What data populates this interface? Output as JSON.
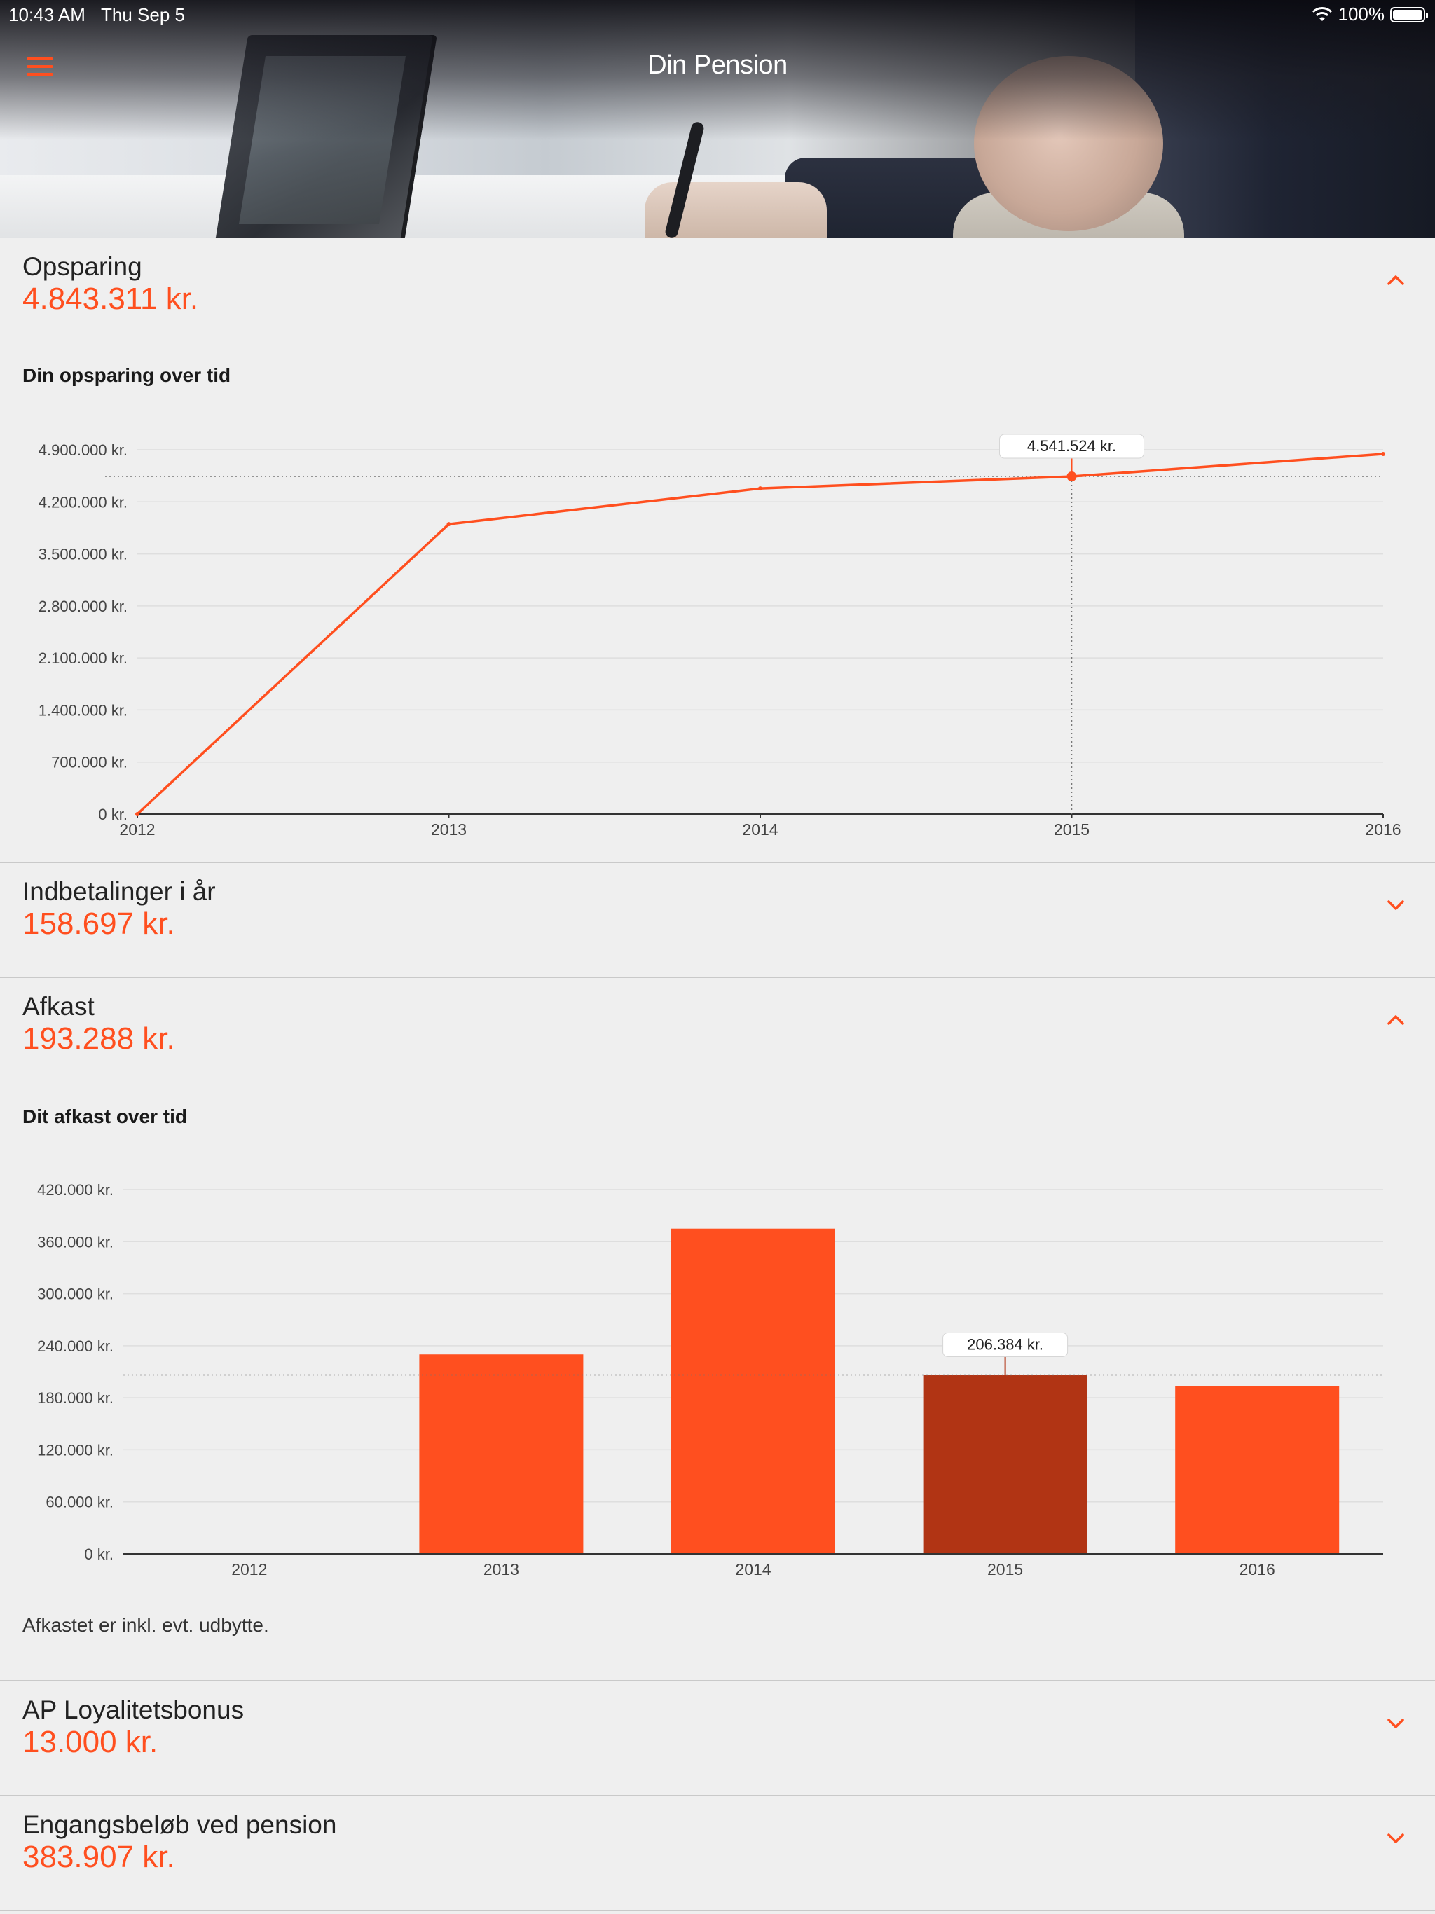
{
  "status_bar": {
    "time": "10:43 AM",
    "date": "Thu Sep 5",
    "battery": "100%"
  },
  "header": {
    "title": "Din Pension"
  },
  "colors": {
    "accent": "#ff4f1f",
    "highlight_bar": "#b13414",
    "background": "#efefef"
  },
  "sections": [
    {
      "title": "Opsparing",
      "amount": "4.843.311 kr.",
      "expanded": true,
      "chart_title": "Din opsparing over tid"
    },
    {
      "title": "Indbetalinger i år",
      "amount": "158.697 kr.",
      "expanded": false
    },
    {
      "title": "Afkast",
      "amount": "193.288 kr.",
      "expanded": true,
      "chart_title": "Dit afkast over tid",
      "note": "Afkastet er inkl. evt. udbytte."
    },
    {
      "title": "AP Loyalitetsbonus",
      "amount": "13.000 kr.",
      "expanded": false
    },
    {
      "title": "Engangsbeløb ved pension",
      "amount": "383.907 kr.",
      "expanded": false
    }
  ],
  "chart_data": [
    {
      "type": "line",
      "title": "Din opsparing over tid",
      "x": [
        "2012",
        "2013",
        "2014",
        "2015",
        "2016"
      ],
      "values": [
        0,
        3900000,
        4380000,
        4541524,
        4843311
      ],
      "y_ticks": [
        "0 kr.",
        "700.000 kr.",
        "1.400.000 kr.",
        "2.100.000 kr.",
        "2.800.000 kr.",
        "3.500.000 kr.",
        "4.200.000 kr.",
        "4.900.000 kr."
      ],
      "ylim": [
        0,
        4900000
      ],
      "grid": true,
      "highlight_index": 3,
      "tooltip": "4.541.524 kr."
    },
    {
      "type": "bar",
      "title": "Dit afkast over tid",
      "categories": [
        "2012",
        "2013",
        "2014",
        "2015",
        "2016"
      ],
      "values": [
        0,
        230000,
        375000,
        206384,
        193288
      ],
      "y_ticks": [
        "0 kr.",
        "60.000 kr.",
        "120.000 kr.",
        "180.000 kr.",
        "240.000 kr.",
        "300.000 kr.",
        "360.000 kr.",
        "420.000 kr."
      ],
      "ylim": [
        0,
        420000
      ],
      "grid": true,
      "highlight_index": 3,
      "tooltip": "206.384 kr."
    }
  ]
}
